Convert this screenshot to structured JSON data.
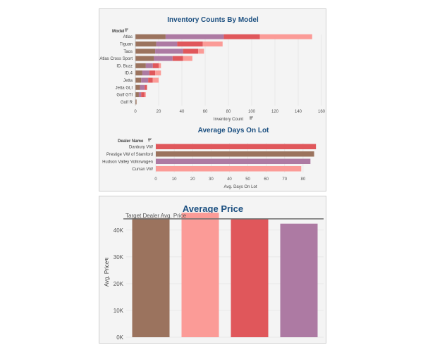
{
  "colors": {
    "brown": "#9b735e",
    "mauve": "#ad7aa3",
    "red": "#e0575b",
    "pink": "#fb9b97",
    "title": "#1b4f80",
    "target_line": "#6e6e6e"
  },
  "filter_icon": "filter-icon",
  "chart_data": [
    {
      "type": "bar",
      "orientation": "horizontal",
      "stacked": true,
      "title": "Inventory Counts By Model",
      "category_header": "Model",
      "xlabel": "Inventory Count",
      "xlim": [
        0,
        160
      ],
      "xticks": [
        0,
        20,
        40,
        60,
        80,
        100,
        120,
        140,
        160
      ],
      "categories": [
        "Atlas",
        "Tiguan",
        "Taos",
        "Atlas Cross Sport",
        "ID. Buzz",
        "ID.4",
        "Jetta",
        "Jetta GLI",
        "Golf GTI",
        "Golf R"
      ],
      "series": [
        {
          "color": "#9b735e",
          "values": [
            26,
            18,
            17,
            16,
            9,
            6,
            5,
            4,
            3,
            1
          ]
        },
        {
          "color": "#ad7aa3",
          "values": [
            50,
            18,
            24,
            16,
            6,
            6,
            6,
            4,
            2,
            0
          ]
        },
        {
          "color": "#e0575b",
          "values": [
            31,
            22,
            13,
            9,
            5,
            5,
            4,
            2,
            3,
            0
          ]
        },
        {
          "color": "#fb9b97",
          "values": [
            45,
            17,
            5,
            8,
            2,
            5,
            5,
            0,
            1,
            0
          ]
        }
      ],
      "grid": true
    },
    {
      "type": "bar",
      "orientation": "horizontal",
      "title": "Average Days On Lot",
      "category_header": "Dealer Name",
      "xlabel": "Avg. Days On Lot",
      "xlim": [
        0,
        90
      ],
      "xticks": [
        0,
        10,
        20,
        30,
        40,
        50,
        60,
        70,
        80
      ],
      "categories": [
        "Danbury VW",
        "Prestige VW of Stamford",
        "Hudson Valley Volkswagen",
        "Curran VW"
      ],
      "values": [
        87,
        86,
        84,
        79
      ],
      "colors": [
        "#e0575b",
        "#9b735e",
        "#ad7aa3",
        "#fb9b97"
      ],
      "grid": true
    },
    {
      "type": "bar",
      "title": "Average Price",
      "ylabel": "Avg. Price",
      "ylim": [
        0,
        46000
      ],
      "yticks": [
        0,
        10000,
        20000,
        30000,
        40000
      ],
      "ytick_labels": [
        "0K",
        "10K",
        "20K",
        "30K",
        "40K"
      ],
      "values": [
        44500,
        46500,
        44200,
        42400
      ],
      "colors": [
        "#9b735e",
        "#fb9b97",
        "#e0575b",
        "#ad7aa3"
      ],
      "reference_line": {
        "label": "Target Dealer Avg. Price",
        "value": 44200
      },
      "grid": true
    }
  ]
}
